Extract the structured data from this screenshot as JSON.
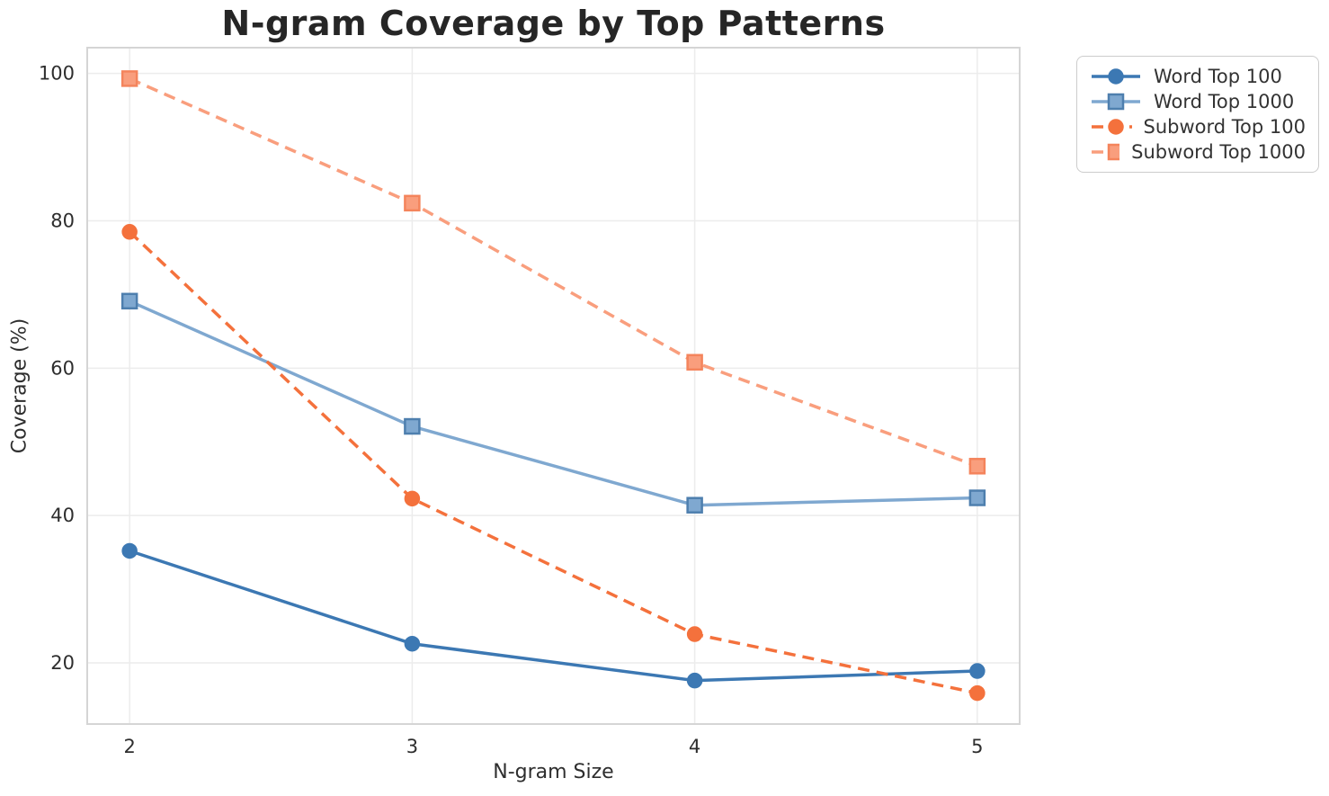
{
  "chart_data": {
    "type": "line",
    "title": "N-gram Coverage by Top Patterns",
    "xlabel": "N-gram Size",
    "ylabel": "Coverage (%)",
    "x": [
      2,
      3,
      4,
      5
    ],
    "xticks": [
      "2",
      "3",
      "4",
      "5"
    ],
    "yticks": [
      20,
      40,
      60,
      80,
      100
    ],
    "xlim": [
      1.85,
      5.15
    ],
    "ylim": [
      11.7,
      103.5
    ],
    "grid": true,
    "legend_position": "outside-upper-right",
    "series": [
      {
        "name": "Word Top 100",
        "values": [
          35.2,
          22.6,
          17.6,
          18.9
        ],
        "color": "#3c78b3",
        "line_style": "solid",
        "marker": "circle",
        "marker_edge": "#3c78b3"
      },
      {
        "name": "Word Top 1000",
        "values": [
          69.1,
          52.1,
          41.4,
          42.4
        ],
        "color": "#7fa8d0",
        "line_style": "solid",
        "marker": "square",
        "marker_edge": "#4e7fae"
      },
      {
        "name": "Subword Top 100",
        "values": [
          78.5,
          42.3,
          23.9,
          15.9
        ],
        "color": "#f4713c",
        "line_style": "dashed",
        "marker": "circle",
        "marker_edge": "#f4713c"
      },
      {
        "name": "Subword Top 1000",
        "values": [
          99.3,
          82.4,
          60.8,
          46.7
        ],
        "color": "#f99e7d",
        "line_style": "dashed",
        "marker": "square",
        "marker_edge": "#f4845c"
      }
    ],
    "style": {
      "grid_color": "#ececec",
      "spine_color": "#d5d5d5",
      "tick_label_color": "#2e2e2e",
      "title_color": "#262626",
      "legend_border_color": "#cccccc",
      "legend_text_color": "#333333",
      "background": "#ffffff"
    }
  }
}
